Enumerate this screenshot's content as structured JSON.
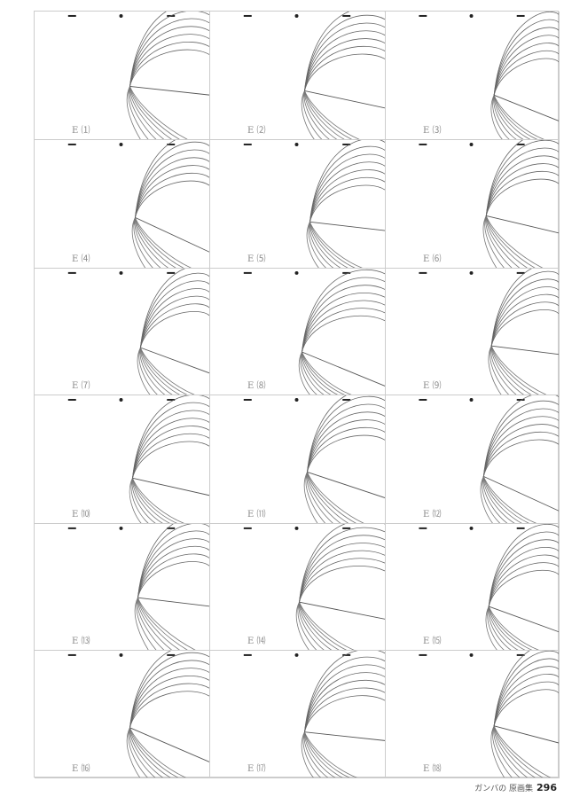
{
  "frames": [
    {
      "label": "E ⑴"
    },
    {
      "label": "E ⑵"
    },
    {
      "label": "E ⑶"
    },
    {
      "label": "E ⑷"
    },
    {
      "label": "E ⑸"
    },
    {
      "label": "E ⑹"
    },
    {
      "label": "E ⑺"
    },
    {
      "label": "E ⑻"
    },
    {
      "label": "E ⑼"
    },
    {
      "label": "E ⑽"
    },
    {
      "label": "E ⑾"
    },
    {
      "label": "E ⑿"
    },
    {
      "label": "E ⒀"
    },
    {
      "label": "E ⒁"
    },
    {
      "label": "E ⒂"
    },
    {
      "label": "E ⒃"
    },
    {
      "label": "E ⒄"
    },
    {
      "label": "E ⒅"
    }
  ],
  "footer": {
    "book_title": "ガンバの 原画集",
    "page_number": "296"
  }
}
